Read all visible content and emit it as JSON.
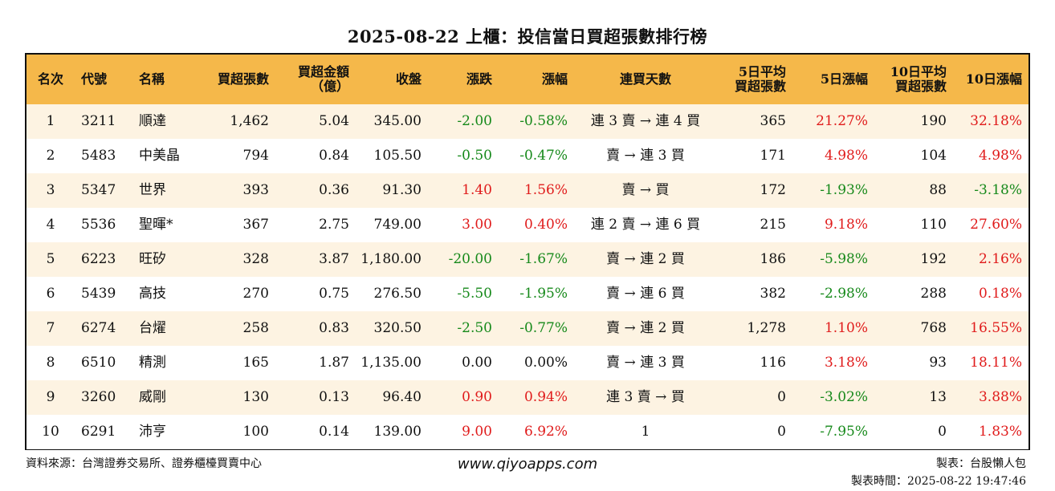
{
  "title": "2025-08-22 上櫃：投信當日買超張數排行榜",
  "headers": [
    "名次",
    "代號",
    "名稱",
    "買超張數",
    "買超金額\n（億）",
    "收盤",
    "漲跌",
    "漲幅",
    "連買天數",
    "5日平均\n買超張數",
    "5日漲幅",
    "10日平均\n買超張數",
    "10日漲幅"
  ],
  "rows": [
    {
      "rank": "1",
      "code": "3211",
      "name": "順達",
      "buy_lots": "1,462",
      "buy_amount": "5.04",
      "close": "345.00",
      "change": "-2.00",
      "pct": "-0.58%",
      "streak": "連 3 賣 → 連 4 買",
      "avg5": "365",
      "pct5": "21.27%",
      "avg10": "190",
      "pct10": "32.18%"
    },
    {
      "rank": "2",
      "code": "5483",
      "name": "中美晶",
      "buy_lots": "794",
      "buy_amount": "0.84",
      "close": "105.50",
      "change": "-0.50",
      "pct": "-0.47%",
      "streak": "賣 → 連 3 買",
      "avg5": "171",
      "pct5": "4.98%",
      "avg10": "104",
      "pct10": "4.98%"
    },
    {
      "rank": "3",
      "code": "5347",
      "name": "世界",
      "buy_lots": "393",
      "buy_amount": "0.36",
      "close": "91.30",
      "change": "1.40",
      "pct": "1.56%",
      "streak": "賣 → 買",
      "avg5": "172",
      "pct5": "-1.93%",
      "avg10": "88",
      "pct10": "-3.18%"
    },
    {
      "rank": "4",
      "code": "5536",
      "name": "聖暉*",
      "buy_lots": "367",
      "buy_amount": "2.75",
      "close": "749.00",
      "change": "3.00",
      "pct": "0.40%",
      "streak": "連 2 賣 → 連 6 買",
      "avg5": "215",
      "pct5": "9.18%",
      "avg10": "110",
      "pct10": "27.60%"
    },
    {
      "rank": "5",
      "code": "6223",
      "name": "旺矽",
      "buy_lots": "328",
      "buy_amount": "3.87",
      "close": "1,180.00",
      "change": "-20.00",
      "pct": "-1.67%",
      "streak": "賣 → 連 2 買",
      "avg5": "186",
      "pct5": "-5.98%",
      "avg10": "192",
      "pct10": "2.16%"
    },
    {
      "rank": "6",
      "code": "5439",
      "name": "高技",
      "buy_lots": "270",
      "buy_amount": "0.75",
      "close": "276.50",
      "change": "-5.50",
      "pct": "-1.95%",
      "streak": "賣 → 連 6 買",
      "avg5": "382",
      "pct5": "-2.98%",
      "avg10": "288",
      "pct10": "0.18%"
    },
    {
      "rank": "7",
      "code": "6274",
      "name": "台燿",
      "buy_lots": "258",
      "buy_amount": "0.83",
      "close": "320.50",
      "change": "-2.50",
      "pct": "-0.77%",
      "streak": "賣 → 連 2 買",
      "avg5": "1,278",
      "pct5": "1.10%",
      "avg10": "768",
      "pct10": "16.55%"
    },
    {
      "rank": "8",
      "code": "6510",
      "name": "精測",
      "buy_lots": "165",
      "buy_amount": "1.87",
      "close": "1,135.00",
      "change": "0.00",
      "pct": "0.00%",
      "streak": "賣 → 連 3 買",
      "avg5": "116",
      "pct5": "3.18%",
      "avg10": "93",
      "pct10": "18.11%"
    },
    {
      "rank": "9",
      "code": "3260",
      "name": "威剛",
      "buy_lots": "130",
      "buy_amount": "0.13",
      "close": "96.40",
      "change": "0.90",
      "pct": "0.94%",
      "streak": "連 3 賣 → 買",
      "avg5": "0",
      "pct5": "-3.02%",
      "avg10": "13",
      "pct10": "3.88%"
    },
    {
      "rank": "10",
      "code": "6291",
      "name": "沛亨",
      "buy_lots": "100",
      "buy_amount": "0.14",
      "close": "139.00",
      "change": "9.00",
      "pct": "6.92%",
      "streak": "1",
      "avg5": "0",
      "pct5": "-7.95%",
      "avg10": "0",
      "pct10": "1.83%"
    }
  ],
  "footer": {
    "source": "資料來源：台灣證券交易所、證券櫃檯買賣中心",
    "url": "www.qiyoapps.com",
    "maker": "製表：台股懶人包",
    "time": "製表時間：2025-08-22 19:47:46"
  },
  "colors": {
    "header_bg": "#f5b84a",
    "odd_row_bg": "#fdf3e2",
    "up": "#e01b1b",
    "down": "#16891a"
  }
}
